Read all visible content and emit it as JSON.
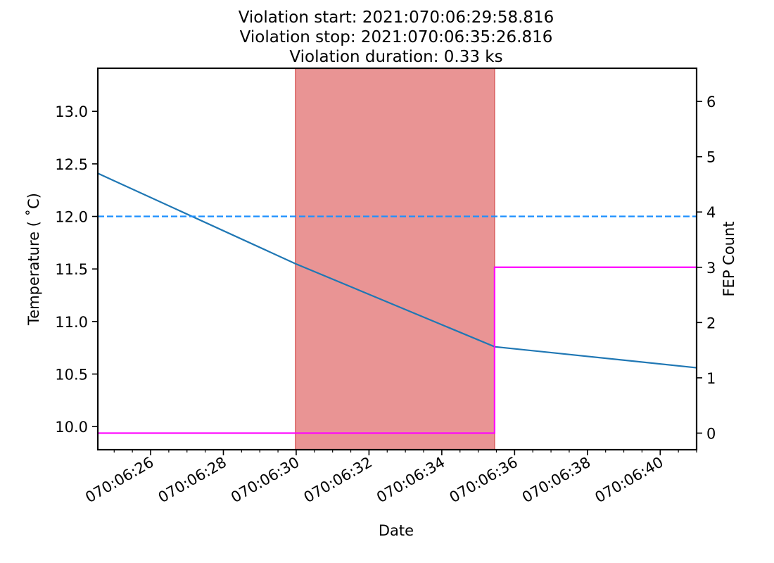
{
  "chart_data": {
    "type": "line",
    "title_lines": [
      "Violation start: 2021:070:06:29:58.816",
      "Violation stop: 2021:070:06:35:26.816",
      "Violation duration: 0.33 ks"
    ],
    "xlabel": "Date",
    "ylabel_left": "Temperature ($^\\circ$C)",
    "ylabel_left_display": "Temperature ( ˚C)",
    "ylabel_right": "FEP Count",
    "x_tick_labels": [
      "070:06:26",
      "070:06:28",
      "070:06:30",
      "070:06:32",
      "070:06:34",
      "070:06:36",
      "070:06:38",
      "070:06:40"
    ],
    "x_tick_minutes": [
      26,
      28,
      30,
      32,
      34,
      36,
      38,
      40
    ],
    "xlim_minutes": [
      24.55,
      41.0
    ],
    "ylim_left": [
      9.78,
      13.41
    ],
    "y_ticks_left": [
      10.0,
      10.5,
      11.0,
      11.5,
      12.0,
      12.5,
      13.0
    ],
    "y_tick_labels_left": [
      "10.0",
      "10.5",
      "11.0",
      "11.5",
      "12.0",
      "12.5",
      "13.0"
    ],
    "ylim_right": [
      -0.3,
      6.6
    ],
    "y_ticks_right": [
      0,
      1,
      2,
      3,
      4,
      5,
      6
    ],
    "y_tick_labels_right": [
      "0",
      "1",
      "2",
      "3",
      "4",
      "5",
      "6"
    ],
    "violation_span_minutes": [
      29.98,
      35.45
    ],
    "series": [
      {
        "axis": "left",
        "color": "#1f77b4",
        "style": "solid",
        "x_minutes": [
          24.55,
          29.98,
          35.45,
          41.0
        ],
        "y": [
          12.41,
          11.55,
          10.76,
          10.56
        ]
      },
      {
        "axis": "left",
        "color": "#1e90ff",
        "style": "dashed",
        "x_minutes": [
          24.55,
          41.0
        ],
        "y": [
          12.0,
          12.0
        ]
      },
      {
        "axis": "right",
        "color": "#ff00ff",
        "style": "step",
        "x_minutes": [
          24.55,
          35.45,
          35.45,
          41.0
        ],
        "y": [
          0,
          0,
          3,
          3
        ]
      }
    ],
    "span_color": "#e06666",
    "grid": false
  }
}
